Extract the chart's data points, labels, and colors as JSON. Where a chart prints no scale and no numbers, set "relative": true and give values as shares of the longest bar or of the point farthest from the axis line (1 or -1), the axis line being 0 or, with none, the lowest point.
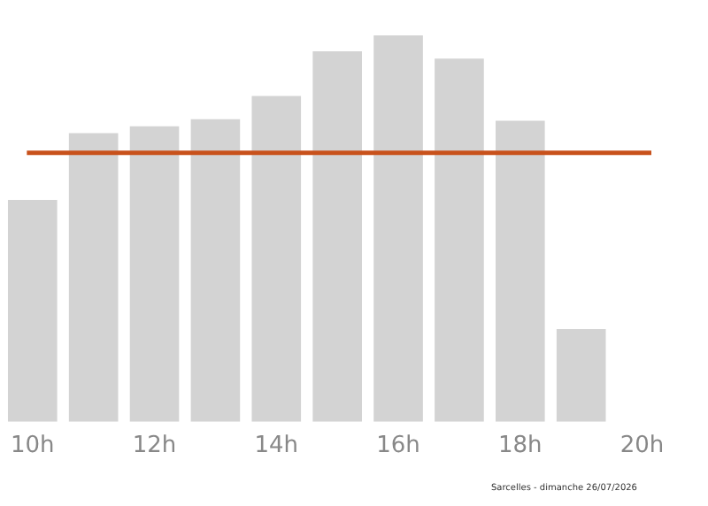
{
  "chart_data": {
    "type": "bar",
    "relative": true,
    "categories": [
      "10h",
      null,
      "12h",
      null,
      "14h",
      null,
      "16h",
      null,
      "18h",
      null,
      "20h"
    ],
    "values": [
      0.574,
      0.747,
      0.765,
      0.783,
      0.843,
      0.959,
      1,
      0.94,
      0.779,
      0.24,
      null
    ],
    "color": "#d3d3d3",
    "ref_lines": [
      {
        "axis": "y",
        "value": 0.696,
        "color": "#c8511b"
      }
    ],
    "grid": false,
    "legend": false,
    "annotations": [
      "Sarcelles - dimanche 26/07/2026"
    ]
  }
}
